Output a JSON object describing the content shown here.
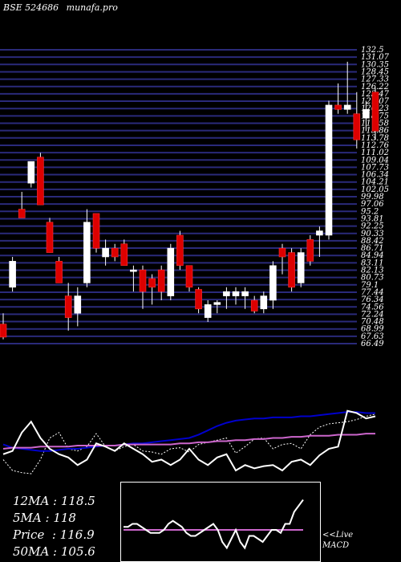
{
  "header": {
    "exchange_code": "BSE 524686",
    "site": "munafa.pro"
  },
  "colors": {
    "background": "#000000",
    "grid": "#2a2a7a",
    "up_candle": "#ffffff",
    "down_candle": "#dd0000",
    "ema_fast": "#ffffff",
    "ema_slow": "#0000cc",
    "ma_long": "#cc66cc",
    "macd_box": "#ffffff"
  },
  "chart_data": [
    {
      "type": "candlestick",
      "title": "",
      "ylim": [
        66.0,
        134.5
      ],
      "price_axis_labels": [
        "132.5",
        "131.07",
        "130.35",
        "128.45",
        "127.33",
        "126.22",
        "123.47",
        "121.07",
        "120.23",
        "118.75",
        "117.58",
        "115.86",
        "113.78",
        "112.76",
        "111.02",
        "109.04",
        "107.73",
        "106.34",
        "104.21",
        "102.05",
        "99.98",
        "97.06",
        "95.2",
        "93.81",
        "92.25",
        "90.33",
        "88.42",
        "86.71",
        "84.94",
        "83.11",
        "82.13",
        "80.73",
        "79.1",
        "77.44",
        "76.34",
        "74.56",
        "72.24",
        "70.48",
        "68.99",
        "67.63",
        "66.49"
      ],
      "candles": [
        {
          "o": 70.5,
          "h": 73.0,
          "l": 67.0,
          "c": 67.5
        },
        {
          "o": 79.0,
          "h": 86.0,
          "l": 78.0,
          "c": 85.0
        },
        {
          "o": 97.0,
          "h": 101.0,
          "l": 95.0,
          "c": 95.0
        },
        {
          "o": 103.0,
          "h": 108.0,
          "l": 102.0,
          "c": 108.0
        },
        {
          "o": 109.0,
          "h": 110.0,
          "l": 98.0,
          "c": 98.0
        },
        {
          "o": 94.0,
          "h": 95.0,
          "l": 87.0,
          "c": 87.0
        },
        {
          "o": 85.0,
          "h": 86.0,
          "l": 80.0,
          "c": 80.0
        },
        {
          "o": 77.0,
          "h": 80.0,
          "l": 69.0,
          "c": 72.0
        },
        {
          "o": 73.0,
          "h": 79.0,
          "l": 70.0,
          "c": 77.0
        },
        {
          "o": 80.0,
          "h": 97.0,
          "l": 79.0,
          "c": 94.0
        },
        {
          "o": 96.0,
          "h": 96.0,
          "l": 87.0,
          "c": 88.0
        },
        {
          "o": 86.0,
          "h": 90.0,
          "l": 84.0,
          "c": 88.0
        },
        {
          "o": 88.0,
          "h": 89.0,
          "l": 85.0,
          "c": 86.0
        },
        {
          "o": 89.0,
          "h": 90.0,
          "l": 84.0,
          "c": 84.0
        },
        {
          "o": 83.0,
          "h": 84.0,
          "l": 78.0,
          "c": 83.0
        },
        {
          "o": 83.0,
          "h": 84.0,
          "l": 74.0,
          "c": 78.0
        },
        {
          "o": 81.0,
          "h": 82.0,
          "l": 75.0,
          "c": 79.0
        },
        {
          "o": 83.0,
          "h": 84.0,
          "l": 76.0,
          "c": 78.0
        },
        {
          "o": 77.0,
          "h": 89.0,
          "l": 76.0,
          "c": 88.0
        },
        {
          "o": 91.0,
          "h": 92.0,
          "l": 83.0,
          "c": 84.0
        },
        {
          "o": 84.0,
          "h": 84.0,
          "l": 78.0,
          "c": 79.0
        },
        {
          "o": 78.5,
          "h": 79.0,
          "l": 73.0,
          "c": 74.0
        },
        {
          "o": 72.0,
          "h": 76.0,
          "l": 71.0,
          "c": 75.0
        },
        {
          "o": 75.0,
          "h": 76.0,
          "l": 73.0,
          "c": 75.5
        },
        {
          "o": 77.0,
          "h": 79.0,
          "l": 74.0,
          "c": 78.0
        },
        {
          "o": 77.0,
          "h": 79.0,
          "l": 75.0,
          "c": 78.0
        },
        {
          "o": 77.0,
          "h": 79.0,
          "l": 74.0,
          "c": 78.0
        },
        {
          "o": 76.0,
          "h": 77.0,
          "l": 73.0,
          "c": 73.5
        },
        {
          "o": 74.0,
          "h": 78.0,
          "l": 73.0,
          "c": 77.0
        },
        {
          "o": 76.0,
          "h": 85.0,
          "l": 74.0,
          "c": 84.0
        },
        {
          "o": 88.0,
          "h": 89.0,
          "l": 82.0,
          "c": 86.0
        },
        {
          "o": 87.0,
          "h": 88.0,
          "l": 78.0,
          "c": 79.0
        },
        {
          "o": 80.0,
          "h": 88.0,
          "l": 79.0,
          "c": 87.0
        },
        {
          "o": 90.0,
          "h": 91.0,
          "l": 84.0,
          "c": 85.0
        },
        {
          "o": 91.0,
          "h": 93.0,
          "l": 86.0,
          "c": 92.0
        },
        {
          "o": 91.0,
          "h": 122.0,
          "l": 90.0,
          "c": 121.0
        },
        {
          "o": 121.0,
          "h": 126.0,
          "l": 119.0,
          "c": 120.0
        },
        {
          "o": 120.0,
          "h": 131.0,
          "l": 119.0,
          "c": 121.0
        },
        {
          "o": 119.0,
          "h": 124.0,
          "l": 111.0,
          "c": 113.0
        },
        {
          "o": 118.0,
          "h": 122.0,
          "l": 115.0,
          "c": 120.0
        },
        {
          "o": 124.0,
          "h": 125.0,
          "l": 113.0,
          "c": 115.0
        }
      ]
    },
    {
      "type": "line",
      "series": [
        {
          "values": [
            50,
            40,
            38,
            37,
            50,
            70,
            75,
            60,
            58,
            62,
            74,
            62,
            58,
            62,
            64,
            58,
            57,
            55,
            60,
            61,
            57,
            64,
            66,
            68,
            70,
            56,
            62,
            69,
            70,
            60,
            64,
            65,
            60,
            73,
            80,
            83,
            84,
            85,
            87,
            90,
            92
          ]
        },
        {
          "values": [
            64,
            61,
            60,
            59,
            58,
            58,
            59,
            60,
            60,
            61,
            62,
            63,
            63,
            64,
            65,
            65,
            66,
            67,
            68,
            69,
            70,
            73,
            77,
            81,
            84,
            86,
            87,
            88,
            88,
            89,
            89,
            89,
            90,
            90,
            91,
            92,
            93,
            94,
            94,
            93,
            93
          ]
        },
        {
          "values": [
            60,
            61,
            61,
            61,
            62,
            62,
            62,
            62,
            63,
            63,
            63,
            63,
            63,
            64,
            64,
            64,
            64,
            64,
            64,
            65,
            65,
            66,
            66,
            67,
            67,
            68,
            68,
            69,
            69,
            70,
            70,
            71,
            71,
            72,
            72,
            72,
            73,
            73,
            73,
            74,
            74
          ]
        },
        {
          "values": [
            55,
            58,
            75,
            85,
            70,
            60,
            55,
            52,
            45,
            50,
            65,
            62,
            58,
            65,
            60,
            55,
            48,
            50,
            45,
            50,
            60,
            50,
            45,
            52,
            55,
            40,
            45,
            42,
            44,
            45,
            40,
            48,
            50,
            45,
            54,
            60,
            62,
            95,
            93,
            88,
            90
          ]
        }
      ]
    },
    {
      "type": "line",
      "title": "MACD",
      "series": [
        {
          "values": [
            0.4,
            0.4,
            0.4,
            0.4,
            0.4,
            0.4,
            0.4,
            0.4,
            0.4,
            0.4,
            0.4,
            0.4,
            0.4,
            0.4,
            0.4,
            0.4,
            0.4,
            0.4,
            0.4,
            0.4,
            0.4,
            0.4,
            0.4,
            0.4,
            0.4,
            0.4,
            0.4,
            0.4,
            0.4,
            0.4,
            0.4,
            0.4,
            0.4,
            0.4,
            0.4,
            0.4,
            0.4,
            0.4,
            0.4,
            0.4,
            0.4
          ]
        },
        {
          "values": [
            0.45,
            0.45,
            0.5,
            0.5,
            0.45,
            0.4,
            0.35,
            0.35,
            0.35,
            0.4,
            0.5,
            0.55,
            0.5,
            0.45,
            0.35,
            0.3,
            0.3,
            0.35,
            0.4,
            0.45,
            0.5,
            0.4,
            0.2,
            0.1,
            0.25,
            0.4,
            0.2,
            0.1,
            0.3,
            0.3,
            0.25,
            0.2,
            0.3,
            0.4,
            0.4,
            0.35,
            0.5,
            0.5,
            0.7,
            0.8,
            0.9
          ]
        }
      ]
    }
  ],
  "stats": {
    "ma12": "12MA : 118.5",
    "ma5": "5MA : 118",
    "price": "Price  : 116.9",
    "ma50": "50MA : 105.6"
  },
  "live_label": "<<Live",
  "macd_label": "MACD"
}
